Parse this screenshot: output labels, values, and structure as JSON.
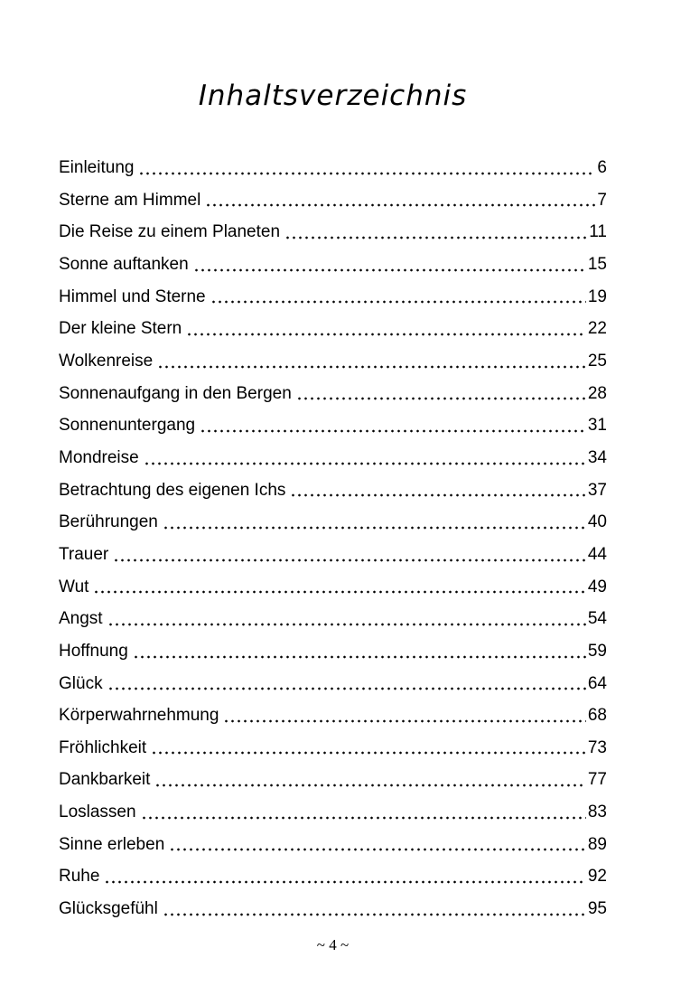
{
  "toc": {
    "title": "Inhaltsverzeichnis",
    "entries": [
      {
        "label": "Einleitung",
        "page": "6"
      },
      {
        "label": "Sterne am Himmel",
        "page": "7"
      },
      {
        "label": "Die Reise zu einem Planeten",
        "page": "11"
      },
      {
        "label": "Sonne auftanken",
        "page": "15"
      },
      {
        "label": "Himmel und Sterne",
        "page": "19"
      },
      {
        "label": "Der kleine Stern",
        "page": "22"
      },
      {
        "label": "Wolkenreise",
        "page": "25"
      },
      {
        "label": "Sonnenaufgang in den Bergen",
        "page": "28"
      },
      {
        "label": "Sonnenuntergang",
        "page": "31"
      },
      {
        "label": "Mondreise",
        "page": "34"
      },
      {
        "label": "Betrachtung des eigenen Ichs",
        "page": "37"
      },
      {
        "label": "Berührungen",
        "page": "40"
      },
      {
        "label": "Trauer",
        "page": "44"
      },
      {
        "label": "Wut",
        "page": "49"
      },
      {
        "label": "Angst",
        "page": "54"
      },
      {
        "label": "Hoffnung",
        "page": "59"
      },
      {
        "label": "Glück",
        "page": "64"
      },
      {
        "label": "Körperwahrnehmung",
        "page": "68"
      },
      {
        "label": "Fröhlichkeit",
        "page": "73"
      },
      {
        "label": "Dankbarkeit",
        "page": "77"
      },
      {
        "label": "Loslassen",
        "page": "83"
      },
      {
        "label": "Sinne erleben",
        "page": "89"
      },
      {
        "label": "Ruhe",
        "page": "92"
      },
      {
        "label": "Glücksgefühl",
        "page": "95"
      }
    ]
  },
  "footer": {
    "page_label": "~ 4 ~"
  },
  "colors": {
    "text": "#000000",
    "background": "#ffffff"
  }
}
